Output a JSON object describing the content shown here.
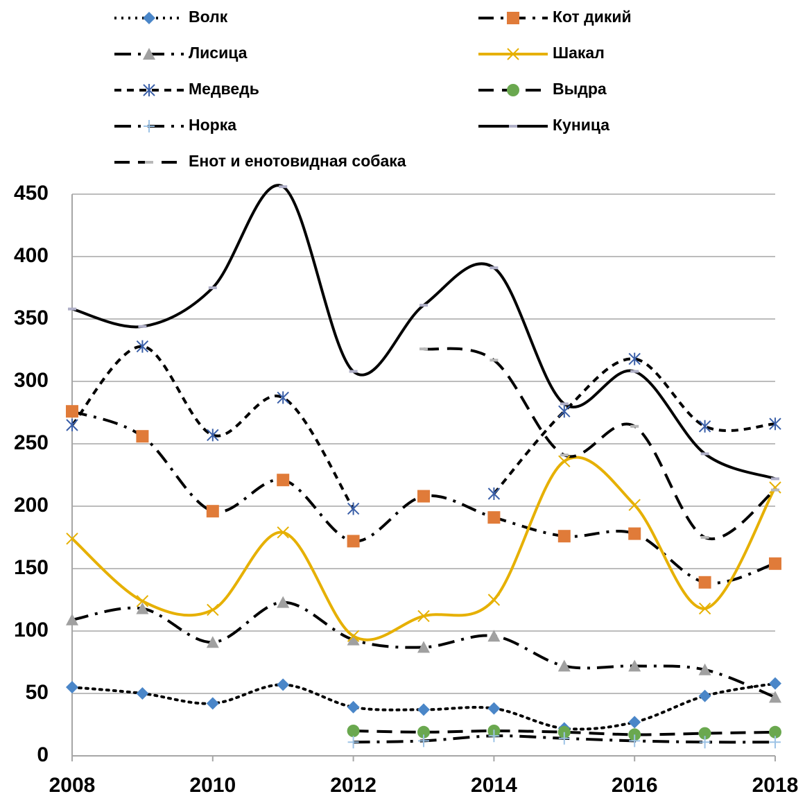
{
  "chart_data": {
    "type": "line",
    "x": [
      2008,
      2009,
      2010,
      2011,
      2012,
      2013,
      2014,
      2015,
      2016,
      2017,
      2018
    ],
    "xlim": [
      2008,
      2018
    ],
    "xticks": [
      2008,
      2010,
      2012,
      2014,
      2016,
      2018
    ],
    "ylim": [
      0,
      450
    ],
    "yticks": [
      0,
      50,
      100,
      150,
      200,
      250,
      300,
      350,
      400,
      450
    ],
    "grid": true,
    "smooth": true,
    "legend": "top",
    "series": [
      {
        "name": "Волк",
        "color": "#4a86c8",
        "line_color": "#000000",
        "line_dash": "3,7",
        "marker": "diamond",
        "values": [
          55,
          50,
          42,
          57,
          39,
          37,
          38,
          22,
          27,
          48,
          58
        ]
      },
      {
        "name": "Кот дикий",
        "color": "#e07b39",
        "line_color": "#000000",
        "line_dash": "22,10,4,10",
        "marker": "square",
        "values": [
          276,
          256,
          196,
          221,
          172,
          208,
          191,
          176,
          178,
          139,
          154
        ]
      },
      {
        "name": "Лисица",
        "color": "#a0a0a0",
        "line_color": "#000000",
        "line_dash": "24,10,4,10",
        "marker": "triangle",
        "values": [
          109,
          118,
          91,
          123,
          93,
          87,
          96,
          72,
          72,
          69,
          47
        ]
      },
      {
        "name": "Шакал",
        "color": "#e6b000",
        "line_color": "#e6b000",
        "line_dash": "",
        "marker": "x",
        "values": [
          174,
          124,
          117,
          179,
          96,
          112,
          125,
          236,
          201,
          118,
          215
        ]
      },
      {
        "name": "Медведь",
        "color": "#3a5fa8",
        "line_color": "#000000",
        "line_dash": "10,8",
        "marker": "asterisk",
        "values": [
          265,
          328,
          257,
          287,
          198,
          null,
          210,
          276,
          318,
          264,
          266
        ]
      },
      {
        "name": "Выдра",
        "color": "#6aa84f",
        "line_color": "#000000",
        "line_dash": "22,12",
        "marker": "circle",
        "values": [
          null,
          null,
          null,
          null,
          20,
          19,
          20,
          19,
          17,
          18,
          19
        ]
      },
      {
        "name": "Норка",
        "color": "#9dc3e6",
        "line_color": "#000000",
        "line_dash": "24,10,4,10",
        "marker": "plus",
        "values": [
          null,
          null,
          null,
          null,
          11,
          12,
          16,
          14,
          12,
          11,
          11
        ]
      },
      {
        "name": "Куница",
        "color": "#b0b0c8",
        "line_color": "#000000",
        "line_dash": "",
        "marker": "dash",
        "values": [
          358,
          344,
          375,
          456,
          308,
          361,
          391,
          282,
          308,
          242,
          222
        ]
      },
      {
        "name": "Енот и енотовидная собака",
        "color": "#b8b8b8",
        "line_color": "#000000",
        "line_dash": "22,12",
        "marker": "dash",
        "values": [
          null,
          null,
          null,
          null,
          null,
          326,
          317,
          241,
          264,
          175,
          213
        ]
      }
    ]
  }
}
